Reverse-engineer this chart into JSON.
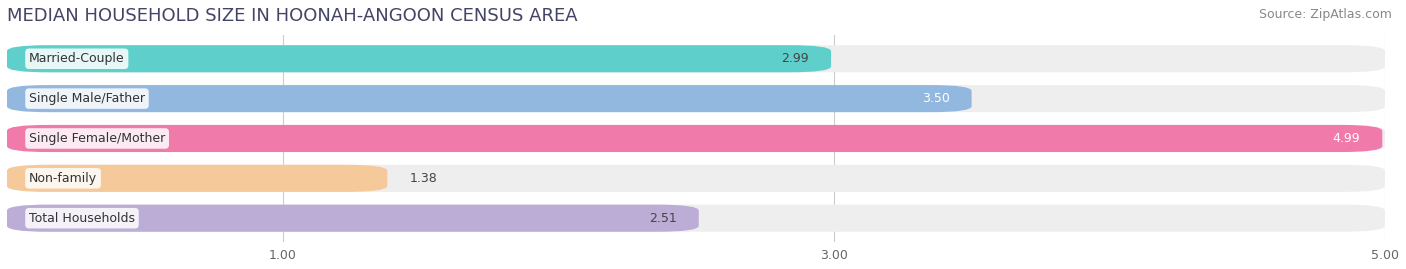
{
  "title": "MEDIAN HOUSEHOLD SIZE IN HOONAH-ANGOON CENSUS AREA",
  "source": "Source: ZipAtlas.com",
  "categories": [
    "Married-Couple",
    "Single Male/Father",
    "Single Female/Mother",
    "Non-family",
    "Total Households"
  ],
  "values": [
    2.99,
    3.5,
    4.99,
    1.38,
    2.51
  ],
  "bar_colors": [
    "#5ecfca",
    "#92b8e0",
    "#f07aaa",
    "#f5c99a",
    "#bbadd6"
  ],
  "value_colors": [
    "#444444",
    "#ffffff",
    "#ffffff",
    "#444444",
    "#444444"
  ],
  "xlim": [
    0,
    5.0
  ],
  "xticks": [
    1.0,
    3.0,
    5.0
  ],
  "title_fontsize": 13,
  "source_fontsize": 9,
  "label_fontsize": 9,
  "value_fontsize": 9,
  "background_color": "#ffffff",
  "bar_background_color": "#eeeeee"
}
